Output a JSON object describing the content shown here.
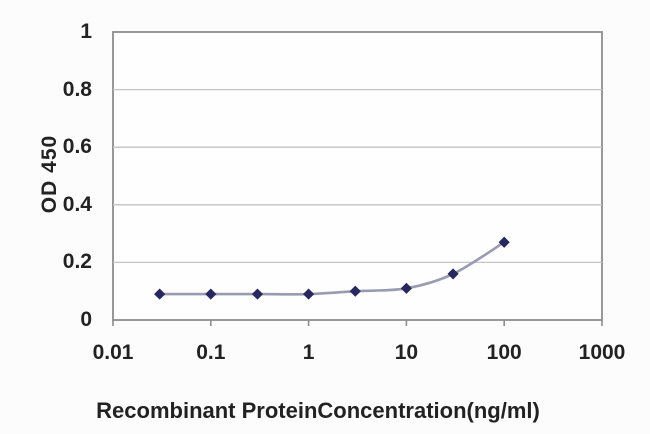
{
  "chart_data": {
    "type": "line",
    "title": "",
    "xlabel": "Recombinant ProteinConcentration(ng/ml)",
    "ylabel": "OD 450",
    "x_scale": "log",
    "xlim": [
      0.01,
      1000
    ],
    "ylim": [
      0,
      1
    ],
    "x_ticks": [
      "0.01",
      "0.1",
      "1",
      "10",
      "100",
      "1000"
    ],
    "x_tick_values": [
      0.01,
      0.1,
      1,
      10,
      100,
      1000
    ],
    "y_ticks": [
      "0",
      "0.2",
      "0.4",
      "0.6",
      "0.8",
      "1"
    ],
    "y_tick_values": [
      0,
      0.2,
      0.4,
      0.6,
      0.8,
      1
    ],
    "grid": "horizontal-major",
    "legend": "none",
    "series": [
      {
        "name": "OD 450",
        "x": [
          0.03,
          0.1,
          0.3,
          1,
          3,
          10,
          30,
          100
        ],
        "y": [
          0.09,
          0.09,
          0.09,
          0.09,
          0.1,
          0.11,
          0.16,
          0.27
        ],
        "marker": "diamond"
      }
    ]
  },
  "colors": {
    "background": "#fcfcfc",
    "plot_fill": "#fefefe",
    "plot_border": "#8c8c8c",
    "gridline": "#c3c3c3",
    "tick_mark": "#8c8c8c",
    "text": "#222222",
    "line": "#9a9ab0",
    "marker": "#28285f"
  }
}
